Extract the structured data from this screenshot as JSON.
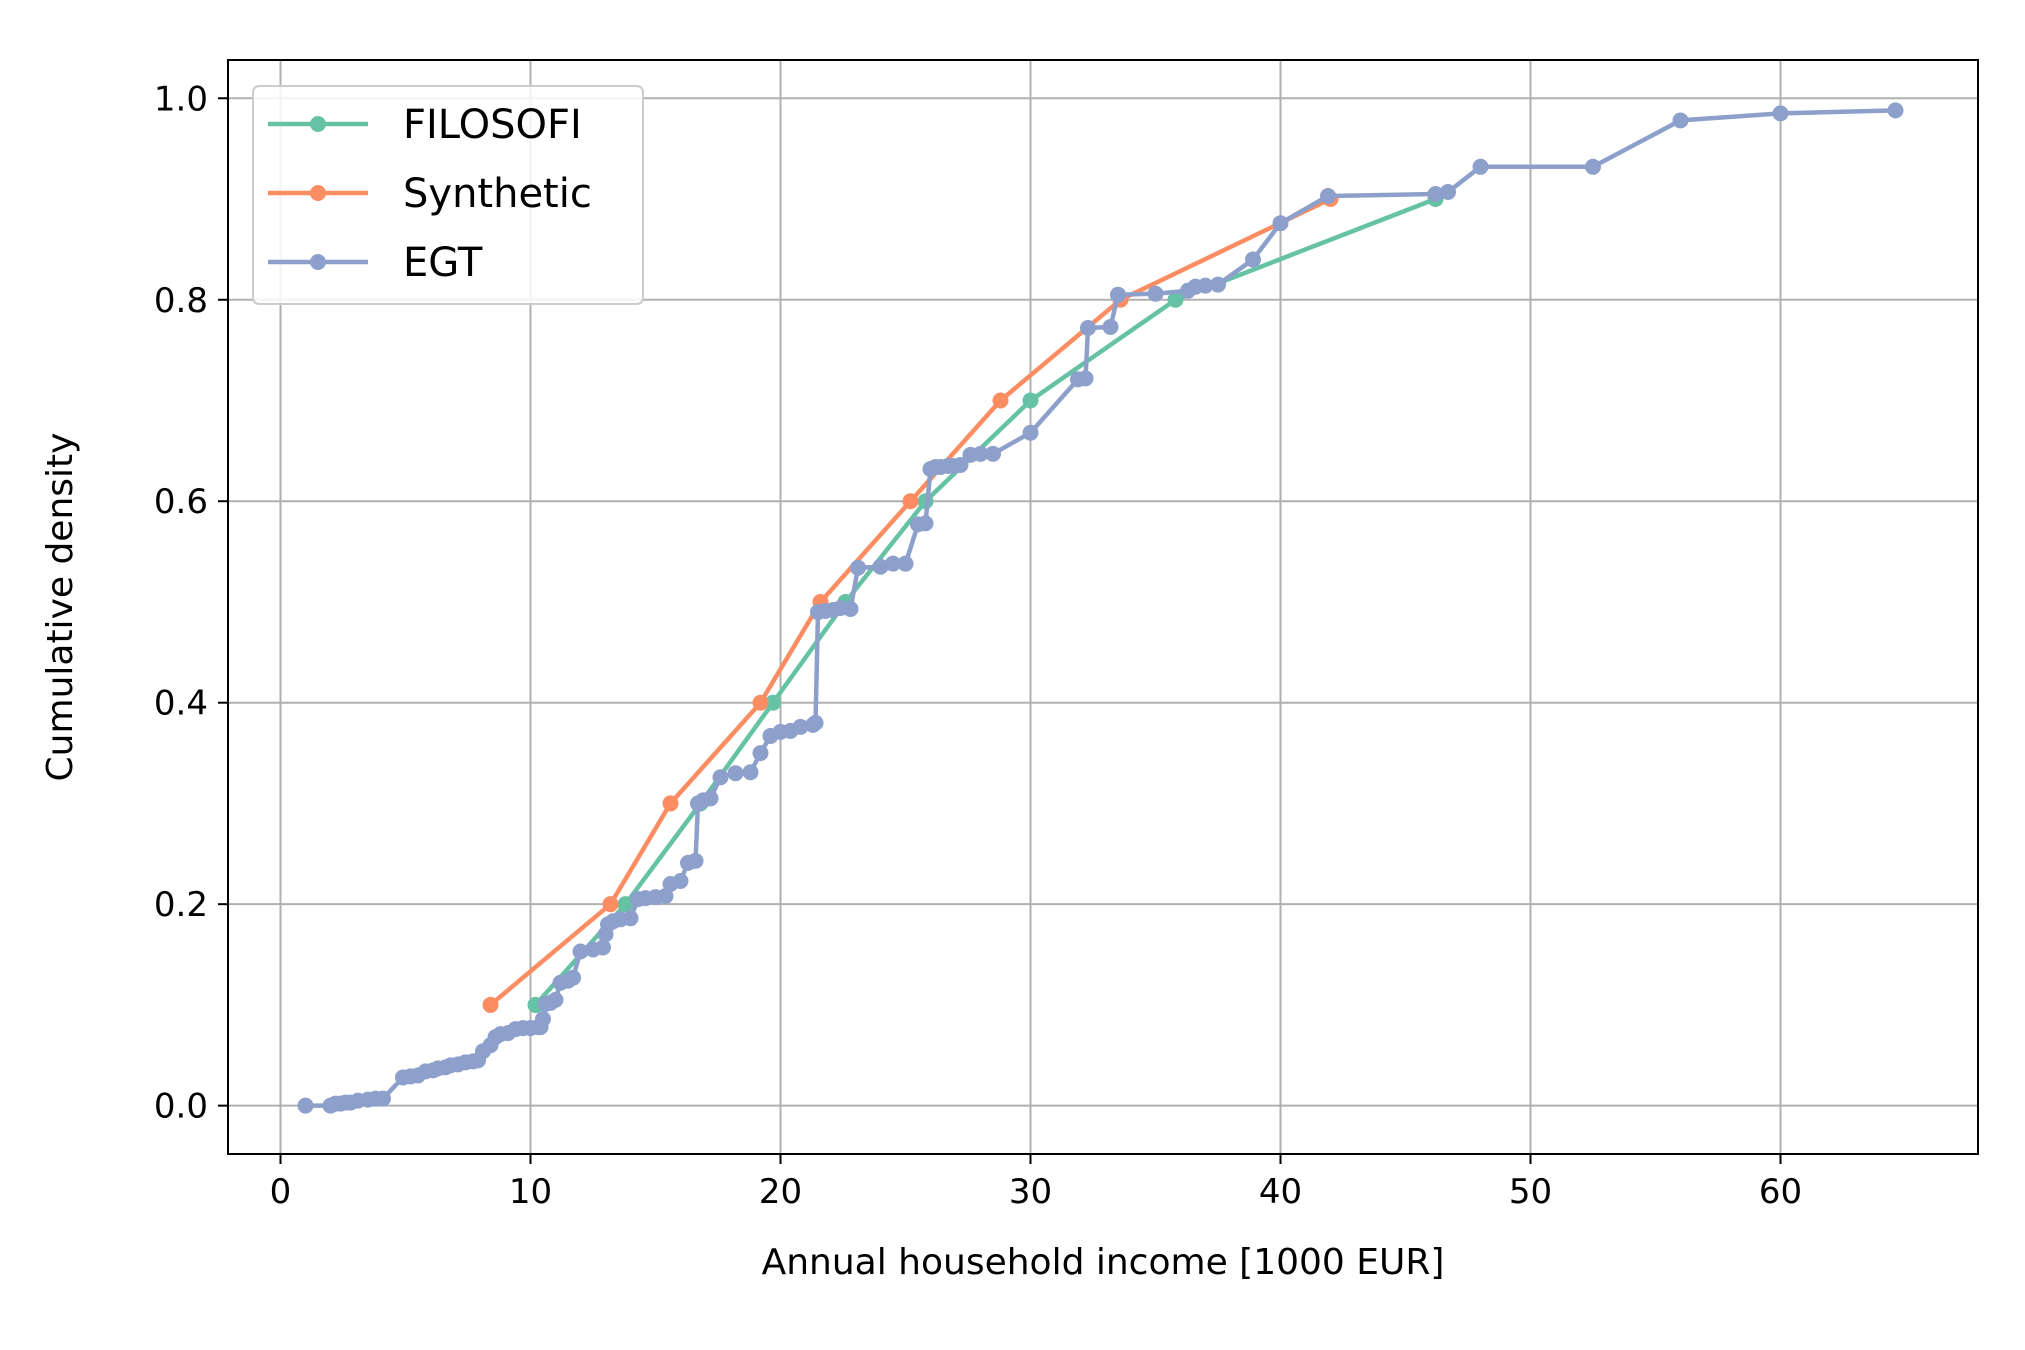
{
  "chart_data": {
    "type": "line",
    "title": "",
    "xlabel": "Annual household income [1000 EUR]",
    "ylabel": "Cumulative density",
    "xlim": [
      -2.1,
      67.9
    ],
    "ylim": [
      -0.048,
      1.038
    ],
    "xticks": [
      0,
      10,
      20,
      30,
      40,
      50,
      60
    ],
    "yticks": [
      0.0,
      0.2,
      0.4,
      0.6,
      0.8,
      1.0
    ],
    "xtick_labels": [
      "0",
      "10",
      "20",
      "30",
      "40",
      "50",
      "60"
    ],
    "ytick_labels": [
      "0.0",
      "0.2",
      "0.4",
      "0.6",
      "0.8",
      "1.0"
    ],
    "grid": true,
    "legend": "upper-left",
    "series": [
      {
        "name": "FILOSOFI",
        "color": "#66c2a5",
        "x": [
          10.2,
          13.8,
          16.8,
          19.7,
          22.6,
          25.8,
          30.0,
          35.8,
          46.2
        ],
        "y": [
          0.1,
          0.2,
          0.3,
          0.4,
          0.5,
          0.6,
          0.7,
          0.8,
          0.9
        ]
      },
      {
        "name": "Synthetic",
        "color": "#fc8d62",
        "x": [
          8.4,
          13.2,
          15.6,
          19.2,
          21.6,
          25.2,
          28.8,
          33.6,
          42.0
        ],
        "y": [
          0.1,
          0.2,
          0.3,
          0.4,
          0.5,
          0.6,
          0.7,
          0.8,
          0.9
        ]
      },
      {
        "name": "EGT",
        "color": "#8da0cb",
        "x": [
          1.0,
          2.0,
          2.2,
          2.4,
          2.6,
          2.8,
          3.1,
          3.5,
          3.8,
          4.1,
          4.9,
          5.2,
          5.5,
          5.8,
          6.1,
          6.3,
          6.6,
          6.8,
          7.1,
          7.4,
          7.7,
          7.9,
          8.1,
          8.4,
          8.6,
          8.8,
          9.1,
          9.4,
          9.7,
          10.0,
          10.3,
          10.4,
          10.5,
          10.6,
          10.8,
          11.0,
          11.2,
          11.5,
          11.7,
          12.0,
          12.5,
          12.9,
          13.0,
          13.1,
          13.3,
          13.6,
          14.0,
          14.3,
          14.6,
          15.0,
          15.4,
          15.6,
          16.0,
          16.3,
          16.6,
          16.7,
          16.9,
          17.2,
          17.6,
          18.2,
          18.8,
          19.2,
          19.6,
          20.0,
          20.4,
          20.8,
          21.3,
          21.4,
          21.5,
          21.8,
          22.1,
          22.4,
          22.8,
          23.1,
          24.0,
          24.5,
          25.0,
          25.5,
          25.8,
          26.0,
          26.2,
          26.4,
          26.7,
          26.9,
          27.2,
          27.6,
          28.0,
          28.5,
          30.0,
          31.9,
          32.2,
          32.3,
          33.2,
          33.5,
          35.0,
          36.3,
          36.6,
          37.0,
          37.5,
          38.9,
          40.0,
          41.9,
          46.2,
          46.7,
          48.0,
          52.5,
          56.0,
          60.0,
          64.6
        ],
        "y": [
          0.0,
          0.0,
          0.002,
          0.002,
          0.003,
          0.003,
          0.005,
          0.006,
          0.007,
          0.007,
          0.028,
          0.029,
          0.03,
          0.034,
          0.035,
          0.037,
          0.038,
          0.04,
          0.041,
          0.043,
          0.044,
          0.045,
          0.054,
          0.06,
          0.068,
          0.071,
          0.072,
          0.076,
          0.077,
          0.077,
          0.078,
          0.078,
          0.086,
          0.101,
          0.102,
          0.105,
          0.122,
          0.124,
          0.127,
          0.153,
          0.155,
          0.157,
          0.17,
          0.18,
          0.183,
          0.185,
          0.186,
          0.205,
          0.206,
          0.207,
          0.208,
          0.22,
          0.223,
          0.241,
          0.243,
          0.3,
          0.303,
          0.305,
          0.326,
          0.33,
          0.331,
          0.35,
          0.367,
          0.371,
          0.372,
          0.376,
          0.378,
          0.38,
          0.49,
          0.491,
          0.492,
          0.494,
          0.493,
          0.534,
          0.535,
          0.538,
          0.538,
          0.577,
          0.578,
          0.632,
          0.634,
          0.634,
          0.635,
          0.635,
          0.636,
          0.646,
          0.647,
          0.647,
          0.668,
          0.721,
          0.722,
          0.772,
          0.773,
          0.805,
          0.806,
          0.809,
          0.813,
          0.814,
          0.815,
          0.84,
          0.876,
          0.903,
          0.905,
          0.907,
          0.932,
          0.932,
          0.978,
          0.985,
          0.988
        ]
      }
    ]
  }
}
